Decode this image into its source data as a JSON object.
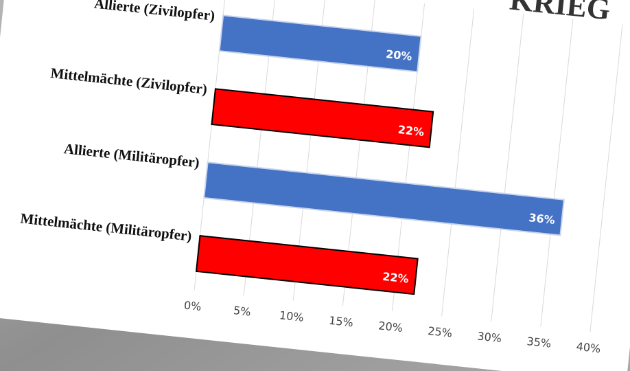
{
  "chart_data": {
    "type": "barh",
    "title": "KRIEG",
    "categories": [
      "Allierte (Zivilopfer)",
      "Mittelmächte (Zivilopfer)",
      "Allierte (Militäropfer)",
      "Mittelmächte (Militäropfer)"
    ],
    "values": [
      20,
      22,
      36,
      22
    ],
    "value_labels": [
      "20%",
      "22%",
      "36%",
      "22%"
    ],
    "colors": [
      "#4472c4",
      "#ff0000",
      "#4472c4",
      "#ff0000"
    ],
    "xlim": [
      0,
      40
    ],
    "xticks": [
      {
        "value": 0,
        "label": "0%"
      },
      {
        "value": 5,
        "label": "5%"
      },
      {
        "value": 10,
        "label": "10%"
      },
      {
        "value": 15,
        "label": "15%"
      },
      {
        "value": 20,
        "label": "20%"
      },
      {
        "value": 25,
        "label": "25%"
      },
      {
        "value": 30,
        "label": "30%"
      },
      {
        "value": 35,
        "label": "35%"
      },
      {
        "value": 40,
        "label": "40%"
      }
    ],
    "grid": true
  }
}
